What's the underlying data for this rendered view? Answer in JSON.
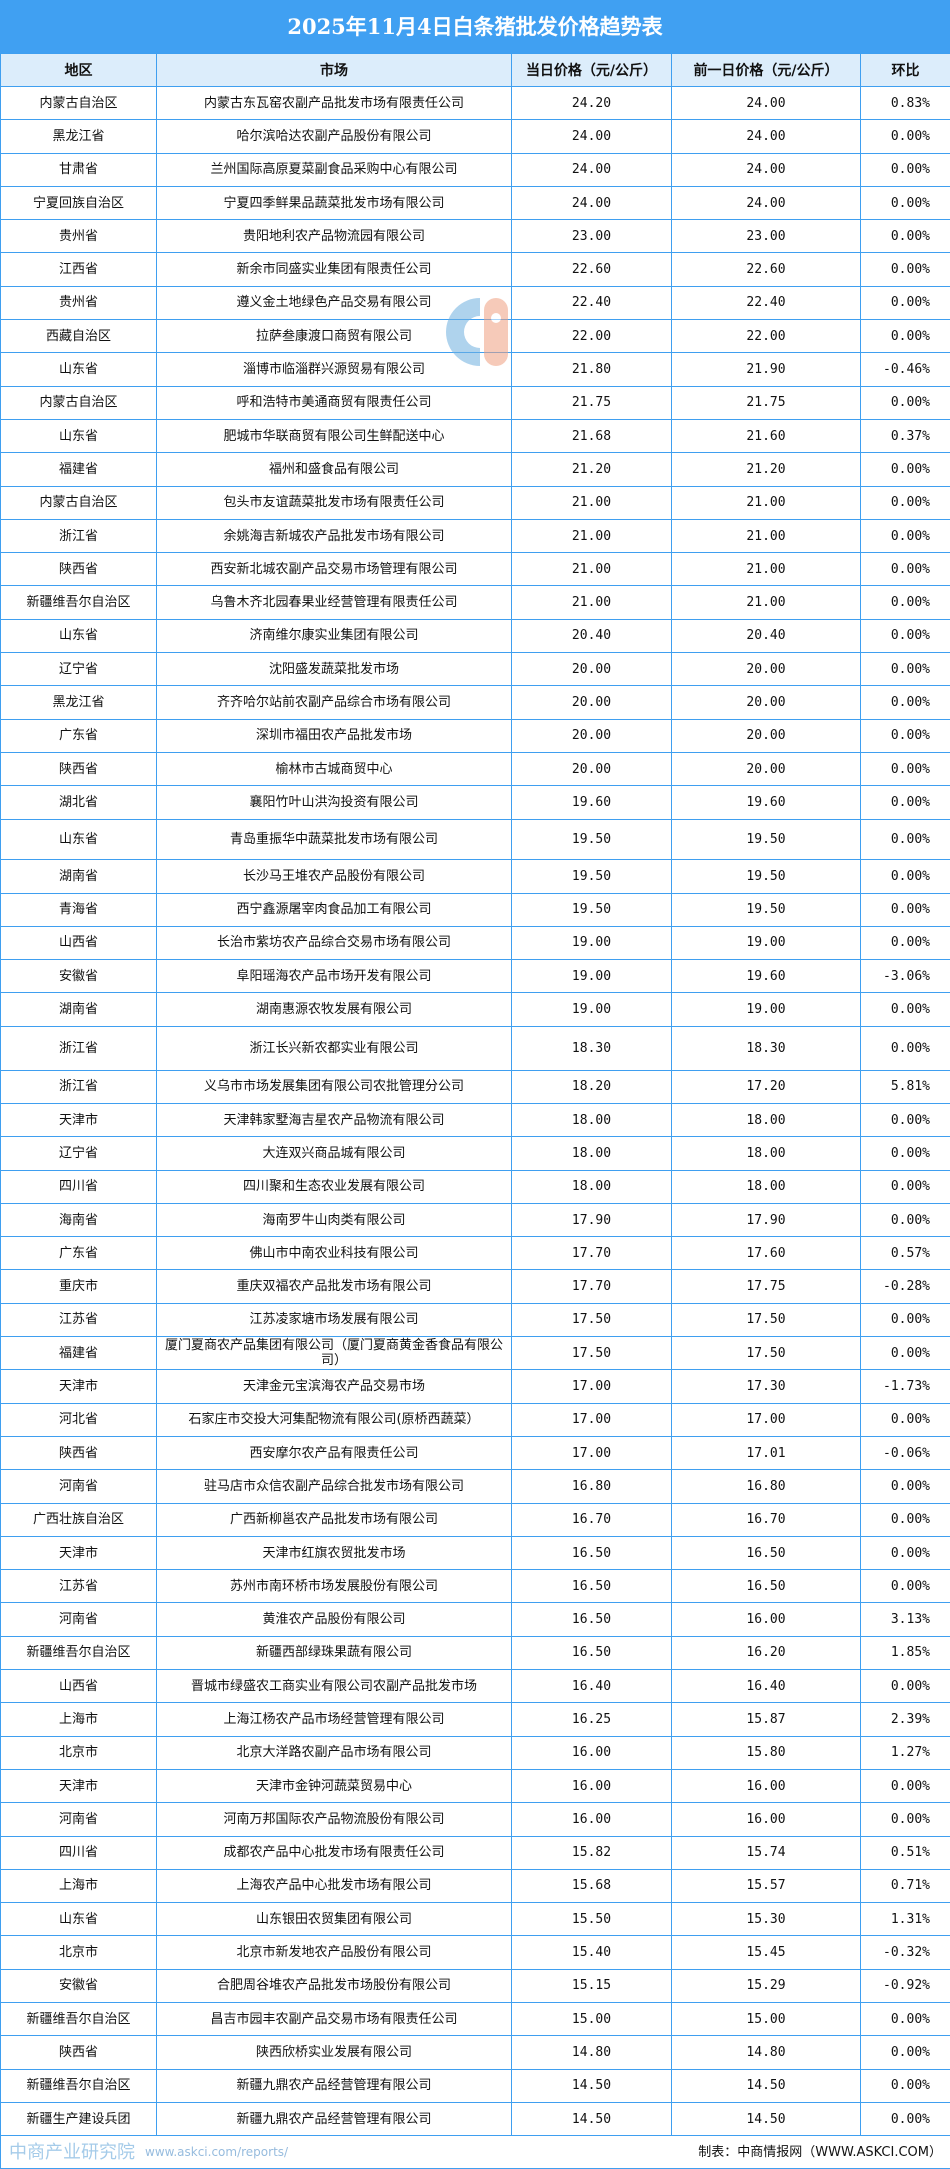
{
  "title": "2025年11月4日白条猪批发价格趋势表",
  "headers": [
    "地区",
    "市场",
    "当日价格（元/公斤）",
    "前一日价格（元/公斤）",
    "环比"
  ],
  "rows": [
    [
      "内蒙古自治区",
      "内蒙古东瓦窑农副产品批发市场有限责任公司",
      "24.20",
      "24.00",
      "0.83%"
    ],
    [
      "黑龙江省",
      "哈尔滨哈达农副产品股份有限公司",
      "24.00",
      "24.00",
      "0.00%"
    ],
    [
      "甘肃省",
      "兰州国际高原夏菜副食品采购中心有限公司",
      "24.00",
      "24.00",
      "0.00%"
    ],
    [
      "宁夏回族自治区",
      "宁夏四季鲜果品蔬菜批发市场有限公司",
      "24.00",
      "24.00",
      "0.00%"
    ],
    [
      "贵州省",
      "贵阳地利农产品物流园有限公司",
      "23.00",
      "23.00",
      "0.00%"
    ],
    [
      "江西省",
      "新余市同盛实业集团有限责任公司",
      "22.60",
      "22.60",
      "0.00%"
    ],
    [
      "贵州省",
      "遵义金土地绿色产品交易有限公司",
      "22.40",
      "22.40",
      "0.00%"
    ],
    [
      "西藏自治区",
      "拉萨叁康渡口商贸有限公司",
      "22.00",
      "22.00",
      "0.00%"
    ],
    [
      "山东省",
      "淄博市临淄群兴源贸易有限公司",
      "21.80",
      "21.90",
      "-0.46%"
    ],
    [
      "内蒙古自治区",
      "呼和浩特市美通商贸有限责任公司",
      "21.75",
      "21.75",
      "0.00%"
    ],
    [
      "山东省",
      "肥城市华联商贸有限公司生鲜配送中心",
      "21.68",
      "21.60",
      "0.37%"
    ],
    [
      "福建省",
      "福州和盛食品有限公司",
      "21.20",
      "21.20",
      "0.00%"
    ],
    [
      "内蒙古自治区",
      "包头市友谊蔬菜批发市场有限责任公司",
      "21.00",
      "21.00",
      "0.00%"
    ],
    [
      "浙江省",
      "余姚海吉新城农产品批发市场有限公司",
      "21.00",
      "21.00",
      "0.00%"
    ],
    [
      "陕西省",
      "西安新北城农副产品交易市场管理有限公司",
      "21.00",
      "21.00",
      "0.00%"
    ],
    [
      "新疆维吾尔自治区",
      "乌鲁木齐北园春果业经营管理有限责任公司",
      "21.00",
      "21.00",
      "0.00%"
    ],
    [
      "山东省",
      "济南维尔康实业集团有限公司",
      "20.40",
      "20.40",
      "0.00%"
    ],
    [
      "辽宁省",
      "沈阳盛发蔬菜批发市场",
      "20.00",
      "20.00",
      "0.00%"
    ],
    [
      "黑龙江省",
      "齐齐哈尔站前农副产品综合市场有限公司",
      "20.00",
      "20.00",
      "0.00%"
    ],
    [
      "广东省",
      "深圳市福田农产品批发市场",
      "20.00",
      "20.00",
      "0.00%"
    ],
    [
      "陕西省",
      "榆林市古城商贸中心",
      "20.00",
      "20.00",
      "0.00%"
    ],
    [
      "湖北省",
      "襄阳竹叶山洪沟投资有限公司",
      "19.60",
      "19.60",
      "0.00%"
    ],
    [
      "山东省",
      "青岛重振华中蔬菜批发市场有限公司",
      "19.50",
      "19.50",
      "0.00%"
    ],
    [
      "湖南省",
      "长沙马王堆农产品股份有限公司",
      "19.50",
      "19.50",
      "0.00%"
    ],
    [
      "青海省",
      "西宁鑫源屠宰肉食品加工有限公司",
      "19.50",
      "19.50",
      "0.00%"
    ],
    [
      "山西省",
      "长治市紫坊农产品综合交易市场有限公司",
      "19.00",
      "19.00",
      "0.00%"
    ],
    [
      "安徽省",
      "阜阳瑶海农产品市场开发有限公司",
      "19.00",
      "19.60",
      "-3.06%"
    ],
    [
      "湖南省",
      "湖南惠源农牧发展有限公司",
      "19.00",
      "19.00",
      "0.00%"
    ],
    [
      "浙江省",
      "浙江长兴新农都实业有限公司",
      "18.30",
      "18.30",
      "0.00%"
    ],
    [
      "浙江省",
      "义乌市市场发展集团有限公司农批管理分公司",
      "18.20",
      "17.20",
      "5.81%"
    ],
    [
      "天津市",
      "天津韩家墅海吉星农产品物流有限公司",
      "18.00",
      "18.00",
      "0.00%"
    ],
    [
      "辽宁省",
      "大连双兴商品城有限公司",
      "18.00",
      "18.00",
      "0.00%"
    ],
    [
      "四川省",
      "四川聚和生态农业发展有限公司",
      "18.00",
      "18.00",
      "0.00%"
    ],
    [
      "海南省",
      "海南罗牛山肉类有限公司",
      "17.90",
      "17.90",
      "0.00%"
    ],
    [
      "广东省",
      "佛山市中南农业科技有限公司",
      "17.70",
      "17.60",
      "0.57%"
    ],
    [
      "重庆市",
      "重庆双福农产品批发市场有限公司",
      "17.70",
      "17.75",
      "-0.28%"
    ],
    [
      "江苏省",
      "江苏凌家塘市场发展有限公司",
      "17.50",
      "17.50",
      "0.00%"
    ],
    [
      "福建省",
      "厦门夏商农产品集团有限公司（厦门夏商黄金香食品有限公司）",
      "17.50",
      "17.50",
      "0.00%"
    ],
    [
      "天津市",
      "天津金元宝滨海农产品交易市场",
      "17.00",
      "17.30",
      "-1.73%"
    ],
    [
      "河北省",
      "石家庄市交投大河集配物流有限公司(原桥西蔬菜）",
      "17.00",
      "17.00",
      "0.00%"
    ],
    [
      "陕西省",
      "西安摩尔农产品有限责任公司",
      "17.00",
      "17.01",
      "-0.06%"
    ],
    [
      "河南省",
      "驻马店市众信农副产品综合批发市场有限公司",
      "16.80",
      "16.80",
      "0.00%"
    ],
    [
      "广西壮族自治区",
      "广西新柳邕农产品批发市场有限公司",
      "16.70",
      "16.70",
      "0.00%"
    ],
    [
      "天津市",
      "天津市红旗农贸批发市场",
      "16.50",
      "16.50",
      "0.00%"
    ],
    [
      "江苏省",
      "苏州市南环桥市场发展股份有限公司",
      "16.50",
      "16.50",
      "0.00%"
    ],
    [
      "河南省",
      "黄淮农产品股份有限公司",
      "16.50",
      "16.00",
      "3.13%"
    ],
    [
      "新疆维吾尔自治区",
      "新疆西部绿珠果蔬有限公司",
      "16.50",
      "16.20",
      "1.85%"
    ],
    [
      "山西省",
      "晋城市绿盛农工商实业有限公司农副产品批发市场",
      "16.40",
      "16.40",
      "0.00%"
    ],
    [
      "上海市",
      "上海江杨农产品市场经营管理有限公司",
      "16.25",
      "15.87",
      "2.39%"
    ],
    [
      "北京市",
      "北京大洋路农副产品市场有限公司",
      "16.00",
      "15.80",
      "1.27%"
    ],
    [
      "天津市",
      "天津市金钟河蔬菜贸易中心",
      "16.00",
      "16.00",
      "0.00%"
    ],
    [
      "河南省",
      "河南万邦国际农产品物流股份有限公司",
      "16.00",
      "16.00",
      "0.00%"
    ],
    [
      "四川省",
      "成都农产品中心批发市场有限责任公司",
      "15.82",
      "15.74",
      "0.51%"
    ],
    [
      "上海市",
      "上海农产品中心批发市场有限公司",
      "15.68",
      "15.57",
      "0.71%"
    ],
    [
      "山东省",
      "山东银田农贸集团有限公司",
      "15.50",
      "15.30",
      "1.31%"
    ],
    [
      "北京市",
      "北京市新发地农产品股份有限公司",
      "15.40",
      "15.45",
      "-0.32%"
    ],
    [
      "安徽省",
      "合肥周谷堆农产品批发市场股份有限公司",
      "15.15",
      "15.29",
      "-0.92%"
    ],
    [
      "新疆维吾尔自治区",
      "昌吉市园丰农副产品交易市场有限责任公司",
      "15.00",
      "15.00",
      "0.00%"
    ],
    [
      "陕西省",
      "陕西欣桥实业发展有限公司",
      "14.80",
      "14.80",
      "0.00%"
    ],
    [
      "新疆维吾尔自治区",
      "新疆九鼎农产品经营管理有限公司",
      "14.50",
      "14.50",
      "0.00%"
    ],
    [
      "新疆生产建设兵团",
      "新疆九鼎农产品经营管理有限公司",
      "14.50",
      "14.50",
      "0.00%"
    ]
  ],
  "footer": "制表：中商情报网（WWW.ASKCI.COM）",
  "watermark": {
    "name": "中商产业研究院",
    "url": "www.askci.com/reports/"
  },
  "colors": {
    "title_bg": "#40a0f2",
    "header_bg": "#dcedfb",
    "grid": "#3f9ff0"
  }
}
